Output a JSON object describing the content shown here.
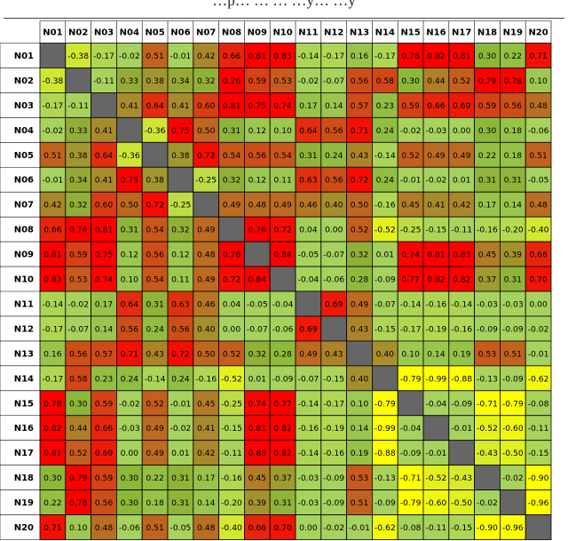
{
  "caption_fragment": "…p… … … …y… …y",
  "chart_data": {
    "type": "heatmap",
    "title": "",
    "row_labels": [
      "N01",
      "N02",
      "N03",
      "N04",
      "N05",
      "N06",
      "N07",
      "N08",
      "N09",
      "N10",
      "N11",
      "N12",
      "N13",
      "N14",
      "N15",
      "N16",
      "N17",
      "N18",
      "N19",
      "N20"
    ],
    "col_labels": [
      "N01",
      "N02",
      "N03",
      "N04",
      "N05",
      "N06",
      "N07",
      "N08",
      "N09",
      "N10",
      "N11",
      "N12",
      "N13",
      "N14",
      "N15",
      "N16",
      "N17",
      "N18",
      "N19",
      "N20"
    ],
    "diagonal": "blank",
    "value_range": [
      -1,
      1
    ],
    "colors": {
      "diagonal": "#666666",
      "high": "#ff0000",
      "mid": "#8cb83a",
      "zero": "#a6d25e",
      "low": "#ffff00",
      "border": "#000000"
    },
    "values": [
      [
        null,
        "-0.38",
        "-0.17",
        "-0.02",
        "0.51",
        "-0.01",
        "0.42",
        "0.66",
        "0.81",
        "0.83",
        "-0.14",
        "-0.17",
        "0.16",
        "-0.17",
        "0.78",
        "0.82",
        "0.81",
        "0.30",
        "0.22",
        "0.71"
      ],
      [
        "-0.38",
        null,
        "-0.11",
        "0.33",
        "0.38",
        "0.34",
        "0.32",
        "0.76",
        "0.59",
        "0.53",
        "-0.02",
        "-0.07",
        "0.56",
        "0.58",
        "0.30",
        "0.44",
        "0.52",
        "0.79",
        "0.78",
        "0.10"
      ],
      [
        "-0.17",
        "-0.11",
        null,
        "0.41",
        "0.64",
        "0.41",
        "0.60",
        "0.81",
        "0.75",
        "0.74",
        "0.17",
        "0.14",
        "0.57",
        "0.23",
        "0.59",
        "0.66",
        "0.69",
        "0.59",
        "0.56",
        "0.48"
      ],
      [
        "-0.02",
        "0.33",
        "0.41",
        null,
        "-0.36",
        "0.75",
        "0.50",
        "0.31",
        "0.12",
        "0.10",
        "0.64",
        "0.56",
        "0.71",
        "0.24",
        "-0.02",
        "-0.03",
        "0.00",
        "0.30",
        "0.18",
        "-0.06"
      ],
      [
        "0.51",
        "0.38",
        "0.64",
        "-0.36",
        null,
        "0.38",
        "0.72",
        "0.54",
        "0.56",
        "0.54",
        "0.31",
        "0.24",
        "0.43",
        "-0.14",
        "0.52",
        "0.49",
        "0.49",
        "0.22",
        "0.18",
        "0.51"
      ],
      [
        "-0.01",
        "0.34",
        "0.41",
        "0.75",
        "0.38",
        null,
        "-0.25",
        "0.32",
        "0.12",
        "0.11",
        "0.63",
        "0.56",
        "0.72",
        "0.24",
        "-0.01",
        "-0.02",
        "0.01",
        "0.31",
        "0.31",
        "-0.05"
      ],
      [
        "0.42",
        "0.32",
        "0.60",
        "0.50",
        "0.72",
        "-0.25",
        null,
        "0.49",
        "0.48",
        "0.49",
        "0.46",
        "0.40",
        "0.50",
        "-0.16",
        "0.45",
        "0.41",
        "0.42",
        "0.17",
        "0.14",
        "0.48"
      ],
      [
        "0.66",
        "0.76",
        "0.81",
        "0.31",
        "0.54",
        "0.32",
        "0.49",
        null,
        "0.76",
        "0.72",
        "0.04",
        "0.00",
        "0.52",
        "-0.52",
        "-0.25",
        "-0.15",
        "-0.11",
        "-0.16",
        "-0.20",
        "-0.40"
      ],
      [
        "0.81",
        "0.59",
        "0.75",
        "0.12",
        "0.56",
        "0.12",
        "0.48",
        "0.76",
        null,
        "0.84",
        "-0.05",
        "-0.07",
        "0.32",
        "0.01",
        "0.74",
        "0.81",
        "0.83",
        "0.45",
        "0.39",
        "0.66"
      ],
      [
        "0.83",
        "0.53",
        "0.74",
        "0.10",
        "0.54",
        "0.11",
        "0.49",
        "0.72",
        "0.84",
        null,
        "-0.04",
        "-0.06",
        "0.28",
        "-0.09",
        "0.77",
        "0.82",
        "0.82",
        "0.37",
        "0.31",
        "0.70"
      ],
      [
        "-0.14",
        "-0.02",
        "0.17",
        "0.64",
        "0.31",
        "0.63",
        "0.46",
        "0.04",
        "-0.05",
        "-0.04",
        null,
        "0.69",
        "0.49",
        "-0.07",
        "-0.14",
        "-0.16",
        "-0.14",
        "-0.03",
        "-0.03",
        "0.00"
      ],
      [
        "-0.17",
        "-0.07",
        "0.14",
        "0.56",
        "0.24",
        "0.56",
        "0.40",
        "0.00",
        "-0.07",
        "-0.06",
        "0.69",
        null,
        "0.43",
        "-0.15",
        "-0.17",
        "-0.19",
        "-0.16",
        "-0.09",
        "-0.09",
        "-0.02"
      ],
      [
        "0.16",
        "0.56",
        "0.57",
        "0.71",
        "0.43",
        "0.72",
        "0.50",
        "0.52",
        "0.32",
        "0.28",
        "0.49",
        "0.43",
        null,
        "0.40",
        "0.10",
        "0.14",
        "0.19",
        "0.53",
        "0.51",
        "-0.01"
      ],
      [
        "-0.17",
        "0.58",
        "0.23",
        "0.24",
        "-0.14",
        "0.24",
        "-0.16",
        "-0.52",
        "0.01",
        "-0.09",
        "-0.07",
        "-0.15",
        "0.40",
        null,
        "-0.79",
        "-0.99",
        "-0.88",
        "-0.13",
        "-0.09",
        "-0.62"
      ],
      [
        "0.78",
        "0.30",
        "0.59",
        "-0.02",
        "0.52",
        "-0.01",
        "0.45",
        "-0.25",
        "0.74",
        "0.77",
        "-0.14",
        "-0.17",
        "0.10",
        "-0.79",
        null,
        "-0.04",
        "-0.09",
        "-0.71",
        "-0.79",
        "-0.08"
      ],
      [
        "0.82",
        "0.44",
        "0.66",
        "-0.03",
        "0.49",
        "-0.02",
        "0.41",
        "-0.15",
        "0.81",
        "0.82",
        "-0.16",
        "-0.19",
        "0.14",
        "-0.99",
        "-0.04",
        null,
        "-0.01",
        "-0.52",
        "-0.60",
        "-0.11"
      ],
      [
        "0.81",
        "0.52",
        "0.69",
        "0.00",
        "0.49",
        "0.01",
        "0.42",
        "-0.11",
        "0.83",
        "0.82",
        "-0.14",
        "-0.16",
        "0.19",
        "-0.88",
        "-0.09",
        "-0.01",
        null,
        "-0.43",
        "-0.50",
        "-0.15"
      ],
      [
        "0.30",
        "0.79",
        "0.59",
        "0.30",
        "0.22",
        "0.31",
        "0.17",
        "-0.16",
        "0.45",
        "0.37",
        "-0.03",
        "-0.09",
        "0.53",
        "-0.13",
        "-0.71",
        "-0.52",
        "-0.43",
        null,
        "-0.02",
        "-0.90"
      ],
      [
        "0.22",
        "0.78",
        "0.56",
        "0.30",
        "0.18",
        "0.31",
        "0.14",
        "-0.20",
        "0.39",
        "0.31",
        "-0.03",
        "-0.09",
        "0.51",
        "-0.09",
        "-0.79",
        "-0.60",
        "-0.50",
        "-0.02",
        null,
        "-0.96"
      ],
      [
        "0.71",
        "0.10",
        "0.48",
        "-0.06",
        "0.51",
        "-0.05",
        "0.48",
        "-0.40",
        "0.66",
        "0.70",
        "0.00",
        "-0.02",
        "-0.01",
        "-0.62",
        "-0.08",
        "-0.11",
        "-0.15",
        "-0.90",
        "-0.96",
        null
      ]
    ]
  }
}
